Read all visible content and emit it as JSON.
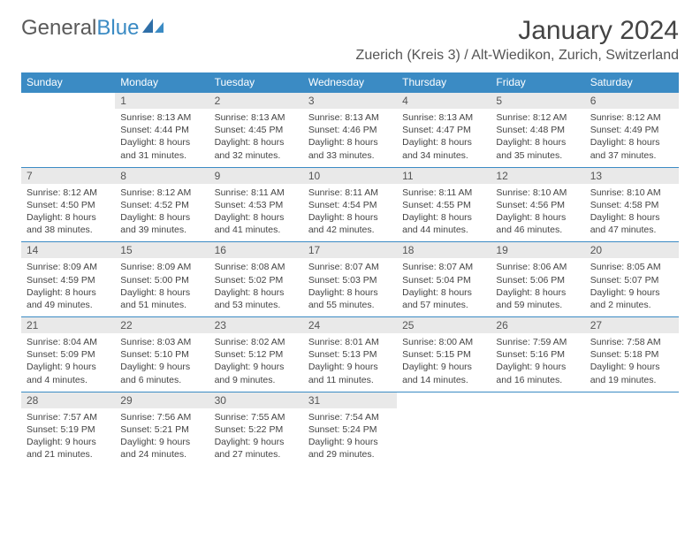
{
  "logo": {
    "text1": "General",
    "text2": "Blue"
  },
  "title": "January 2024",
  "location": "Zuerich (Kreis 3) / Alt-Wiedikon, Zurich, Switzerland",
  "colors": {
    "header_bg": "#3b8bc4",
    "header_text": "#ffffff",
    "daynum_bg": "#e9e9e9",
    "row_rule": "#3b8bc4",
    "body_text": "#444444"
  },
  "weekdays": [
    "Sunday",
    "Monday",
    "Tuesday",
    "Wednesday",
    "Thursday",
    "Friday",
    "Saturday"
  ],
  "weeks": [
    [
      {
        "n": "",
        "sunrise": "",
        "sunset": "",
        "day": ""
      },
      {
        "n": "1",
        "sunrise": "Sunrise: 8:13 AM",
        "sunset": "Sunset: 4:44 PM",
        "day": "Daylight: 8 hours and 31 minutes."
      },
      {
        "n": "2",
        "sunrise": "Sunrise: 8:13 AM",
        "sunset": "Sunset: 4:45 PM",
        "day": "Daylight: 8 hours and 32 minutes."
      },
      {
        "n": "3",
        "sunrise": "Sunrise: 8:13 AM",
        "sunset": "Sunset: 4:46 PM",
        "day": "Daylight: 8 hours and 33 minutes."
      },
      {
        "n": "4",
        "sunrise": "Sunrise: 8:13 AM",
        "sunset": "Sunset: 4:47 PM",
        "day": "Daylight: 8 hours and 34 minutes."
      },
      {
        "n": "5",
        "sunrise": "Sunrise: 8:12 AM",
        "sunset": "Sunset: 4:48 PM",
        "day": "Daylight: 8 hours and 35 minutes."
      },
      {
        "n": "6",
        "sunrise": "Sunrise: 8:12 AM",
        "sunset": "Sunset: 4:49 PM",
        "day": "Daylight: 8 hours and 37 minutes."
      }
    ],
    [
      {
        "n": "7",
        "sunrise": "Sunrise: 8:12 AM",
        "sunset": "Sunset: 4:50 PM",
        "day": "Daylight: 8 hours and 38 minutes."
      },
      {
        "n": "8",
        "sunrise": "Sunrise: 8:12 AM",
        "sunset": "Sunset: 4:52 PM",
        "day": "Daylight: 8 hours and 39 minutes."
      },
      {
        "n": "9",
        "sunrise": "Sunrise: 8:11 AM",
        "sunset": "Sunset: 4:53 PM",
        "day": "Daylight: 8 hours and 41 minutes."
      },
      {
        "n": "10",
        "sunrise": "Sunrise: 8:11 AM",
        "sunset": "Sunset: 4:54 PM",
        "day": "Daylight: 8 hours and 42 minutes."
      },
      {
        "n": "11",
        "sunrise": "Sunrise: 8:11 AM",
        "sunset": "Sunset: 4:55 PM",
        "day": "Daylight: 8 hours and 44 minutes."
      },
      {
        "n": "12",
        "sunrise": "Sunrise: 8:10 AM",
        "sunset": "Sunset: 4:56 PM",
        "day": "Daylight: 8 hours and 46 minutes."
      },
      {
        "n": "13",
        "sunrise": "Sunrise: 8:10 AM",
        "sunset": "Sunset: 4:58 PM",
        "day": "Daylight: 8 hours and 47 minutes."
      }
    ],
    [
      {
        "n": "14",
        "sunrise": "Sunrise: 8:09 AM",
        "sunset": "Sunset: 4:59 PM",
        "day": "Daylight: 8 hours and 49 minutes."
      },
      {
        "n": "15",
        "sunrise": "Sunrise: 8:09 AM",
        "sunset": "Sunset: 5:00 PM",
        "day": "Daylight: 8 hours and 51 minutes."
      },
      {
        "n": "16",
        "sunrise": "Sunrise: 8:08 AM",
        "sunset": "Sunset: 5:02 PM",
        "day": "Daylight: 8 hours and 53 minutes."
      },
      {
        "n": "17",
        "sunrise": "Sunrise: 8:07 AM",
        "sunset": "Sunset: 5:03 PM",
        "day": "Daylight: 8 hours and 55 minutes."
      },
      {
        "n": "18",
        "sunrise": "Sunrise: 8:07 AM",
        "sunset": "Sunset: 5:04 PM",
        "day": "Daylight: 8 hours and 57 minutes."
      },
      {
        "n": "19",
        "sunrise": "Sunrise: 8:06 AM",
        "sunset": "Sunset: 5:06 PM",
        "day": "Daylight: 8 hours and 59 minutes."
      },
      {
        "n": "20",
        "sunrise": "Sunrise: 8:05 AM",
        "sunset": "Sunset: 5:07 PM",
        "day": "Daylight: 9 hours and 2 minutes."
      }
    ],
    [
      {
        "n": "21",
        "sunrise": "Sunrise: 8:04 AM",
        "sunset": "Sunset: 5:09 PM",
        "day": "Daylight: 9 hours and 4 minutes."
      },
      {
        "n": "22",
        "sunrise": "Sunrise: 8:03 AM",
        "sunset": "Sunset: 5:10 PM",
        "day": "Daylight: 9 hours and 6 minutes."
      },
      {
        "n": "23",
        "sunrise": "Sunrise: 8:02 AM",
        "sunset": "Sunset: 5:12 PM",
        "day": "Daylight: 9 hours and 9 minutes."
      },
      {
        "n": "24",
        "sunrise": "Sunrise: 8:01 AM",
        "sunset": "Sunset: 5:13 PM",
        "day": "Daylight: 9 hours and 11 minutes."
      },
      {
        "n": "25",
        "sunrise": "Sunrise: 8:00 AM",
        "sunset": "Sunset: 5:15 PM",
        "day": "Daylight: 9 hours and 14 minutes."
      },
      {
        "n": "26",
        "sunrise": "Sunrise: 7:59 AM",
        "sunset": "Sunset: 5:16 PM",
        "day": "Daylight: 9 hours and 16 minutes."
      },
      {
        "n": "27",
        "sunrise": "Sunrise: 7:58 AM",
        "sunset": "Sunset: 5:18 PM",
        "day": "Daylight: 9 hours and 19 minutes."
      }
    ],
    [
      {
        "n": "28",
        "sunrise": "Sunrise: 7:57 AM",
        "sunset": "Sunset: 5:19 PM",
        "day": "Daylight: 9 hours and 21 minutes."
      },
      {
        "n": "29",
        "sunrise": "Sunrise: 7:56 AM",
        "sunset": "Sunset: 5:21 PM",
        "day": "Daylight: 9 hours and 24 minutes."
      },
      {
        "n": "30",
        "sunrise": "Sunrise: 7:55 AM",
        "sunset": "Sunset: 5:22 PM",
        "day": "Daylight: 9 hours and 27 minutes."
      },
      {
        "n": "31",
        "sunrise": "Sunrise: 7:54 AM",
        "sunset": "Sunset: 5:24 PM",
        "day": "Daylight: 9 hours and 29 minutes."
      },
      {
        "n": "",
        "sunrise": "",
        "sunset": "",
        "day": ""
      },
      {
        "n": "",
        "sunrise": "",
        "sunset": "",
        "day": ""
      },
      {
        "n": "",
        "sunrise": "",
        "sunset": "",
        "day": ""
      }
    ]
  ]
}
